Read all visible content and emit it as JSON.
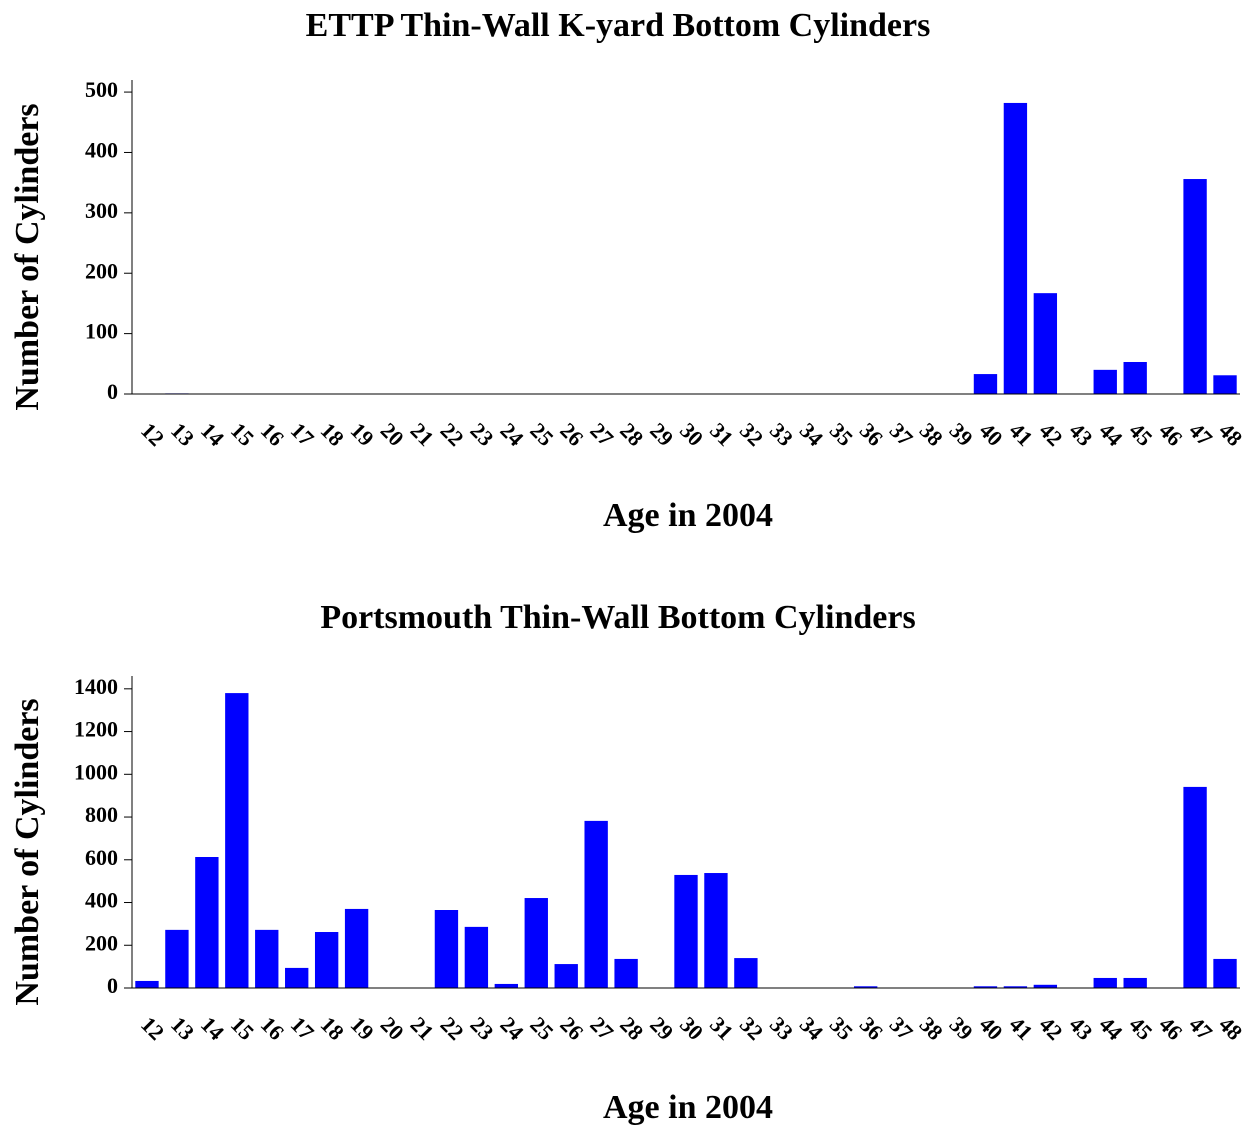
{
  "chart_data": [
    {
      "type": "bar",
      "title": "ETTP Thin-Wall K-yard Bottom Cylinders",
      "xlabel": "Age in 2004",
      "ylabel": "Number of Cylinders",
      "categories": [
        "12",
        "13",
        "14",
        "15",
        "16",
        "17",
        "18",
        "19",
        "20",
        "21",
        "22",
        "23",
        "24",
        "25",
        "26",
        "27",
        "28",
        "29",
        "30",
        "31",
        "32",
        "33",
        "34",
        "35",
        "36",
        "37",
        "38",
        "39",
        "40",
        "41",
        "42",
        "43",
        "44",
        "45",
        "46",
        "47",
        "48"
      ],
      "values": [
        0,
        1,
        0,
        0,
        0,
        0,
        0,
        0,
        0,
        0,
        0,
        0,
        0,
        0,
        0,
        0,
        0,
        0,
        0,
        0,
        0,
        0,
        0,
        0,
        0,
        0,
        0,
        0,
        33,
        482,
        167,
        0,
        40,
        53,
        0,
        356,
        31
      ],
      "color": "#0000ff",
      "ylim": [
        0,
        520
      ],
      "yticks": [
        0,
        100,
        200,
        300,
        400,
        500
      ]
    },
    {
      "type": "bar",
      "title": "Portsmouth Thin-Wall Bottom Cylinders",
      "xlabel": "Age in 2004",
      "ylabel": "Number of Cylinders",
      "categories": [
        "12",
        "13",
        "14",
        "15",
        "16",
        "17",
        "18",
        "19",
        "20",
        "21",
        "22",
        "23",
        "24",
        "25",
        "26",
        "27",
        "28",
        "29",
        "30",
        "31",
        "32",
        "33",
        "34",
        "35",
        "36",
        "37",
        "38",
        "39",
        "40",
        "41",
        "42",
        "43",
        "44",
        "45",
        "46",
        "47",
        "48"
      ],
      "values": [
        33,
        272,
        613,
        1380,
        272,
        94,
        262,
        370,
        0,
        0,
        365,
        286,
        19,
        421,
        112,
        782,
        136,
        0,
        529,
        538,
        140,
        0,
        0,
        0,
        8,
        0,
        0,
        0,
        8,
        8,
        15,
        0,
        47,
        47,
        0,
        941,
        136
      ],
      "color": "#0000ff",
      "ylim": [
        0,
        1460
      ],
      "yticks": [
        0,
        200,
        400,
        600,
        800,
        1000,
        1200,
        1400
      ]
    }
  ]
}
